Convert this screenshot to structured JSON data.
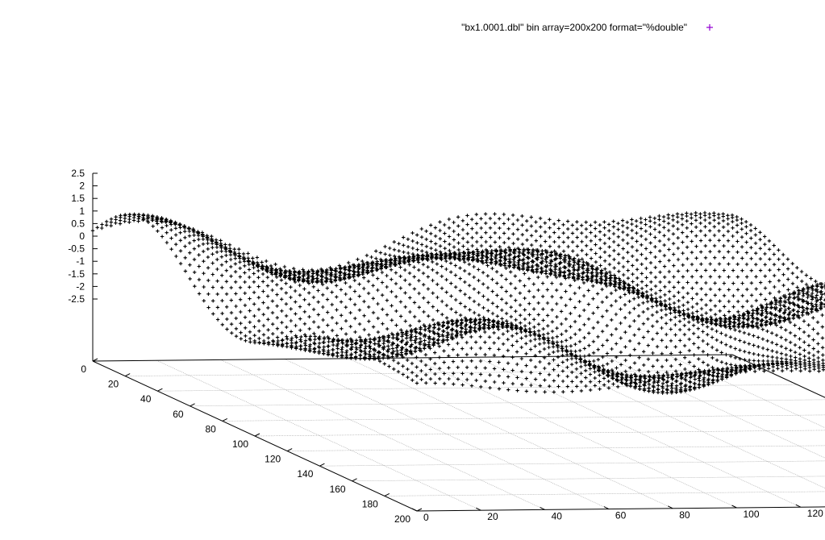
{
  "chart_data": {
    "type": "surface3d",
    "plot_style": "points",
    "series": [
      {
        "name": "\"bx1.0001.dbl\" bin array=200x200 format=\"%double\"",
        "marker": "cross",
        "marker_color": "#000000",
        "legend_marker_color": "#9400d3"
      }
    ],
    "x_axis": {
      "ticks": [
        "0",
        "20",
        "40",
        "60",
        "80",
        "100",
        "120",
        "140",
        "160",
        "180",
        "200"
      ],
      "range": [
        0,
        200
      ]
    },
    "y_axis": {
      "ticks": [
        "0",
        "20",
        "40",
        "60",
        "80",
        "100",
        "120",
        "140",
        "160",
        "180",
        "200"
      ],
      "range": [
        0,
        200
      ]
    },
    "z_axis": {
      "ticks": [
        "2.5",
        "2",
        "1.5",
        "1",
        "0.5",
        "0",
        "-0.5",
        "-1",
        "-1.5",
        "-2",
        "-2.5"
      ],
      "range": [
        -2.5,
        2.5
      ]
    },
    "grid": true,
    "legend_position": "top-right",
    "colors": {
      "axis": "#000000",
      "grid": "#a0a0a0",
      "surface": "#000000"
    }
  }
}
